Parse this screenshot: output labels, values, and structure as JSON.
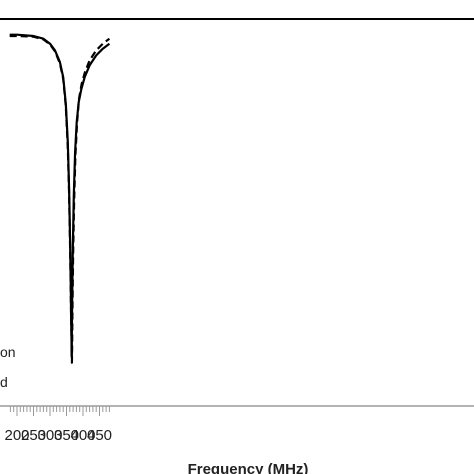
{
  "chart_data": {
    "type": "line",
    "title": "",
    "xlabel": "Frequency (MHz)",
    "ylabel": "",
    "xlim": [
      178,
      480
    ],
    "ylim": [
      0,
      1
    ],
    "x_ticks": [
      200,
      250,
      300,
      350,
      400,
      450
    ],
    "x_minor_step": 10,
    "legend_visible_fragments": [
      "on",
      "d"
    ],
    "legend_position": "bottom-left",
    "series": [
      {
        "style": "solid",
        "color": "#000000",
        "x": [
          178,
          200,
          250,
          280,
          300,
          315,
          330,
          340,
          348,
          354,
          358,
          361,
          363,
          364,
          365,
          365.5,
          366,
          367,
          369,
          372,
          376,
          381,
          387,
          395,
          405,
          420,
          440,
          460,
          480
        ],
        "y": [
          0.962,
          0.962,
          0.958,
          0.95,
          0.935,
          0.915,
          0.88,
          0.835,
          0.755,
          0.64,
          0.5,
          0.34,
          0.2,
          0.12,
          0.05,
          0.0,
          0.05,
          0.15,
          0.32,
          0.48,
          0.61,
          0.7,
          0.76,
          0.8,
          0.835,
          0.87,
          0.9,
          0.92,
          0.935
        ]
      },
      {
        "style": "dashed",
        "color": "#000000",
        "x": [
          178,
          200,
          250,
          280,
          300,
          315,
          330,
          340,
          348,
          354,
          358,
          361,
          363,
          364,
          365,
          366,
          366.5,
          367,
          368,
          370,
          373,
          377,
          382,
          388,
          396,
          406,
          420,
          440,
          460,
          480
        ],
        "y": [
          0.958,
          0.958,
          0.956,
          0.948,
          0.933,
          0.912,
          0.876,
          0.83,
          0.748,
          0.625,
          0.485,
          0.325,
          0.19,
          0.12,
          0.06,
          0.01,
          -0.02,
          0.02,
          0.12,
          0.3,
          0.46,
          0.6,
          0.7,
          0.77,
          0.815,
          0.85,
          0.885,
          0.915,
          0.935,
          0.95
        ]
      }
    ]
  }
}
